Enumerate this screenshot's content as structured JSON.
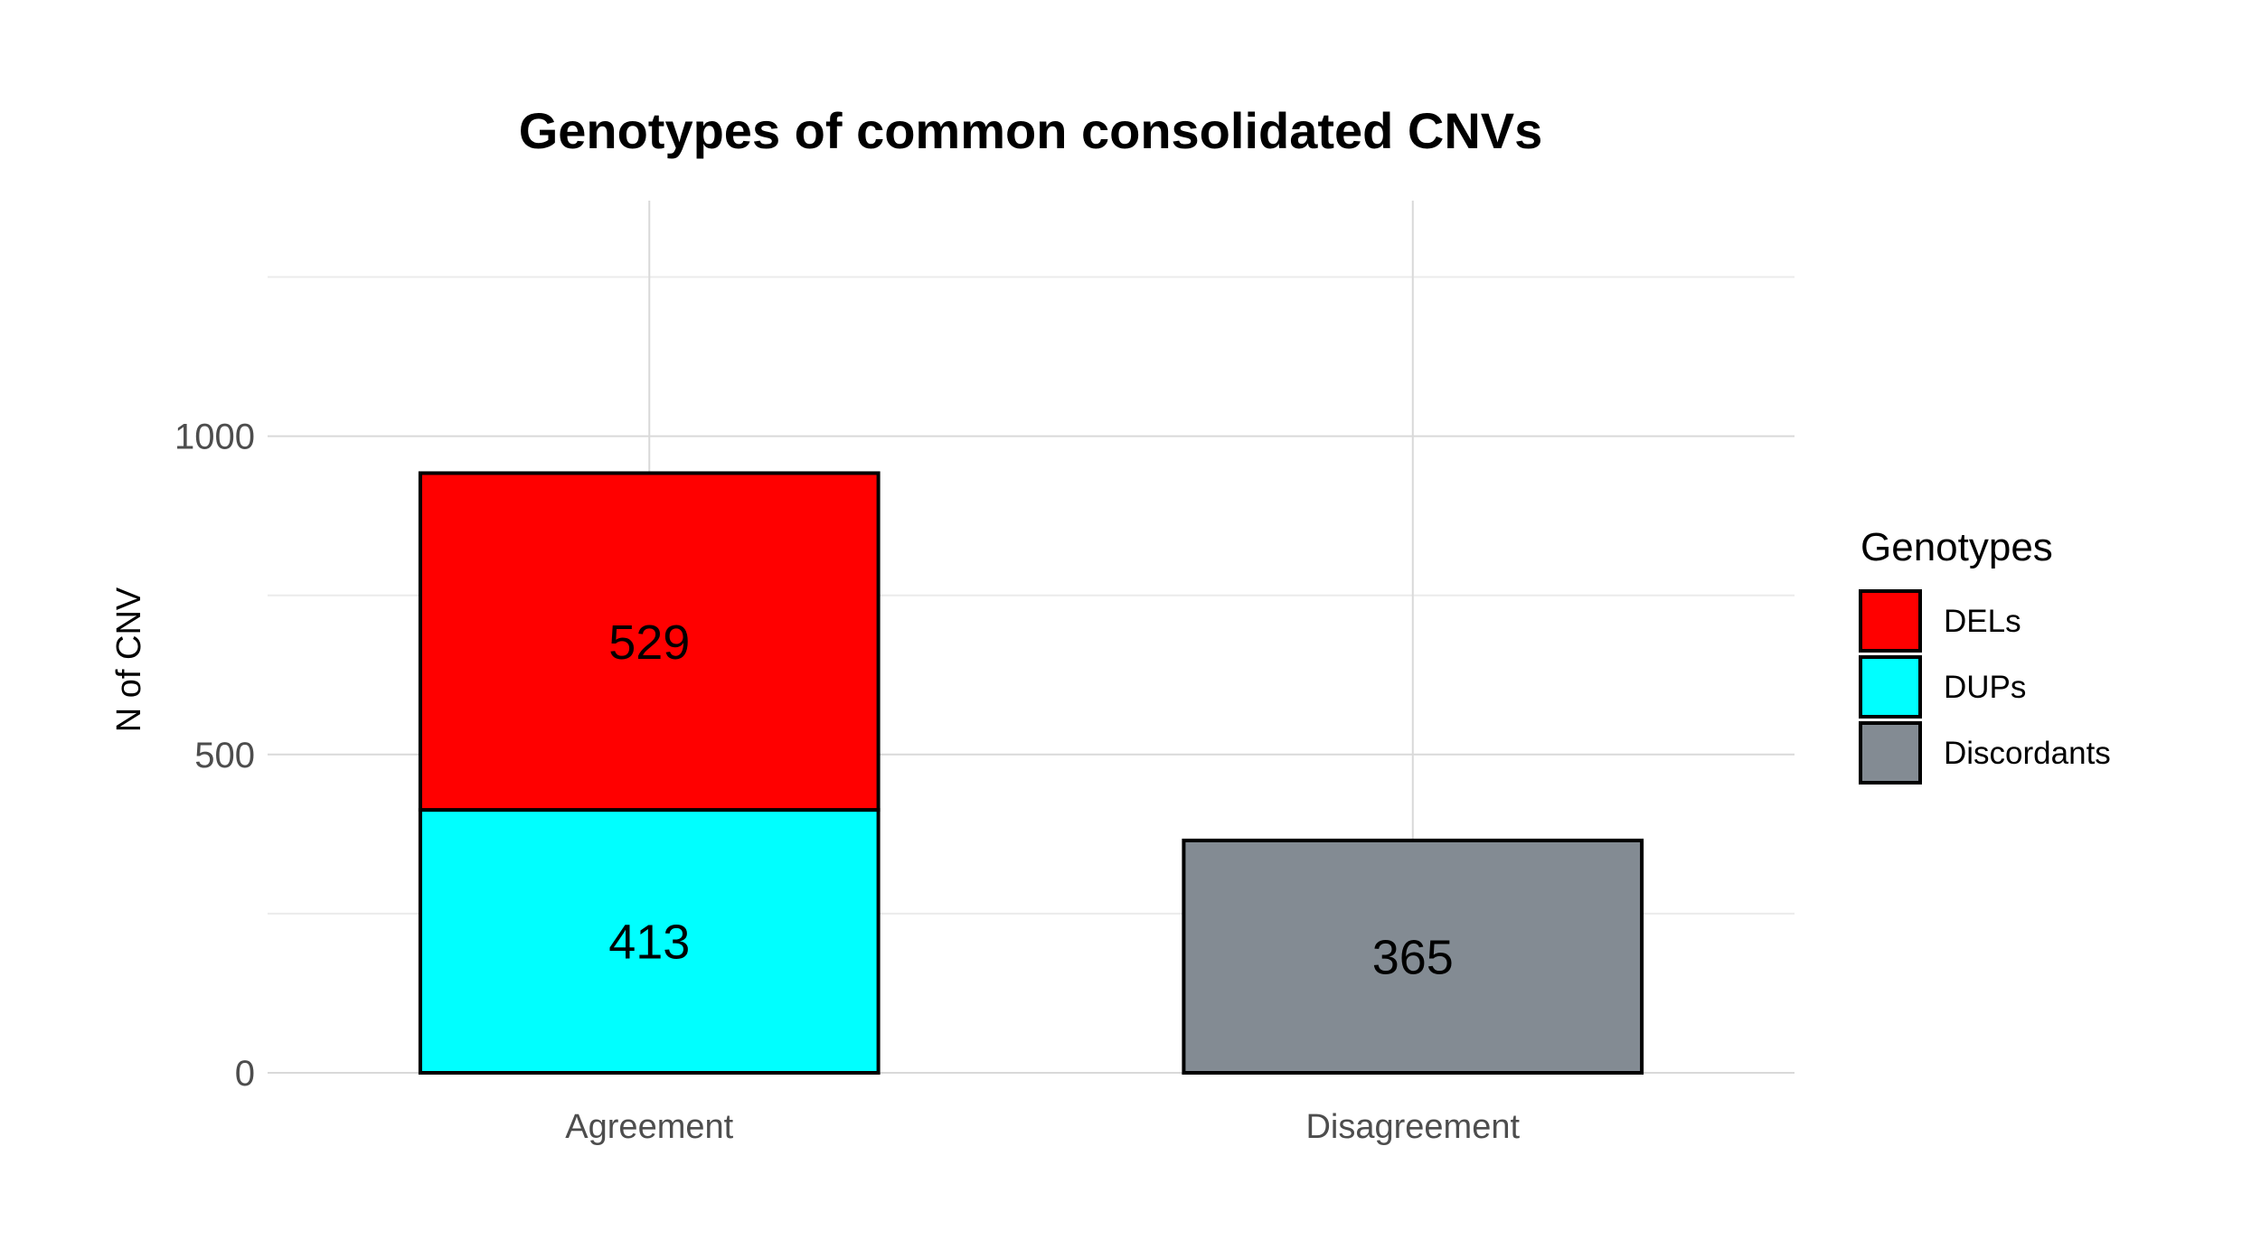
{
  "chart_data": {
    "type": "bar",
    "stacked": true,
    "title": "Genotypes of common consolidated CNVs",
    "xlabel": "",
    "ylabel": "N of CNV",
    "categories": [
      "Agreement",
      "Disagreement"
    ],
    "series": [
      {
        "name": "DUPs",
        "color": "#00FFFF",
        "values": [
          413,
          0
        ]
      },
      {
        "name": "DELs",
        "color": "#FF0000",
        "values": [
          529,
          0
        ]
      },
      {
        "name": "Discordants",
        "color": "#838B93",
        "values": [
          0,
          365
        ]
      }
    ],
    "ylim": [
      0,
      1370
    ],
    "yticks": [
      0,
      500,
      1000
    ],
    "minor_yticks": [
      250,
      750,
      1250
    ],
    "grid": true,
    "legend": {
      "title": "Genotypes",
      "position": "right",
      "entries": [
        "DELs",
        "DUPs",
        "Discordants"
      ]
    }
  }
}
